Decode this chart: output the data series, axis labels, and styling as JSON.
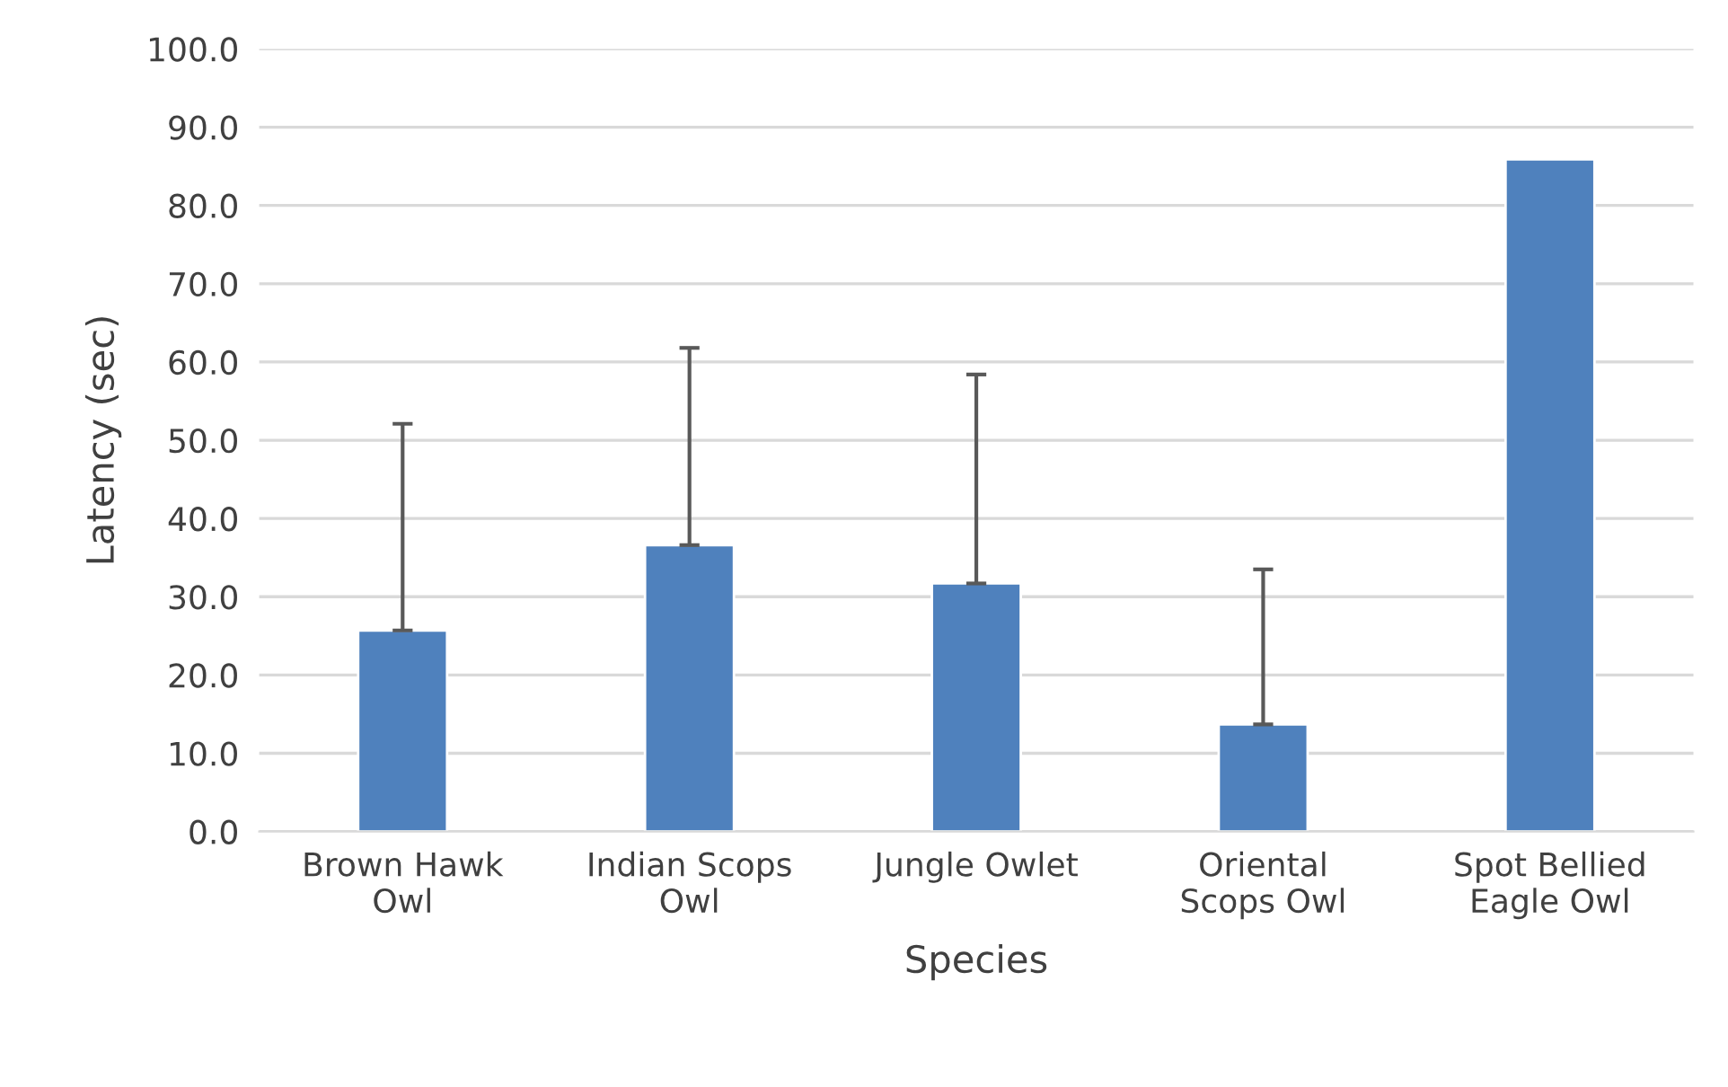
{
  "chart_data": {
    "type": "bar",
    "xlabel": "Species",
    "ylabel": "Latency (sec)",
    "categories": [
      "Brown Hawk Owl",
      "Indian Scops Owl",
      "Jungle Owlet",
      "Oriental Scops Owl",
      "Spot Bellied Eagle Owl"
    ],
    "values": [
      25.7,
      36.6,
      31.7,
      13.7,
      85.9
    ],
    "errors": [
      [
        25.7,
        52.1
      ],
      [
        36.6,
        61.8
      ],
      [
        31.7,
        58.4
      ],
      [
        13.7,
        33.5
      ],
      null
    ],
    "color": "#4f81bd",
    "ylim": [
      0,
      100
    ],
    "yticks": [
      {
        "value": 0,
        "label": "0.0"
      },
      {
        "value": 10,
        "label": "10.0"
      },
      {
        "value": 20,
        "label": "20.0"
      },
      {
        "value": 30,
        "label": "30.0"
      },
      {
        "value": 40,
        "label": "40.0"
      },
      {
        "value": 50,
        "label": "50.0"
      },
      {
        "value": 60,
        "label": "60.0"
      },
      {
        "value": 70,
        "label": "70.0"
      },
      {
        "value": 80,
        "label": "80.0"
      },
      {
        "value": 90,
        "label": "90.0"
      },
      {
        "value": 100,
        "label": "100.0"
      }
    ],
    "grid": "y"
  }
}
